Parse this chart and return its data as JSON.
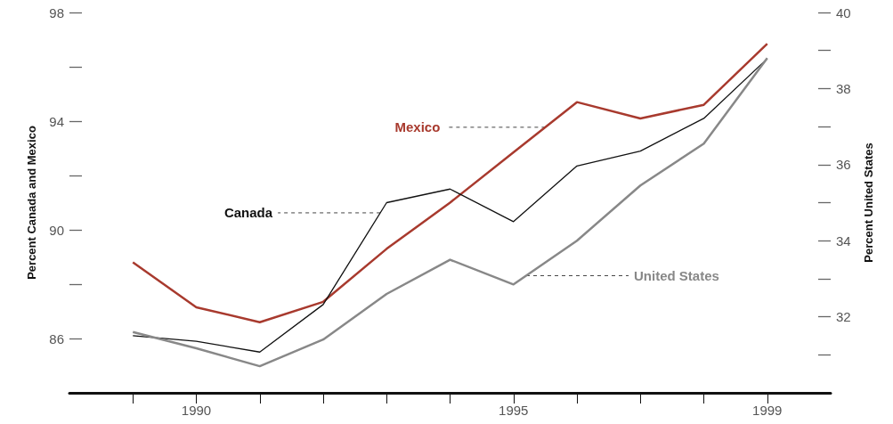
{
  "chart_data": {
    "type": "line",
    "ylabel": "Percent Canada and Mexico",
    "y2label": "Percent United States",
    "x": [
      1989,
      1990,
      1991,
      1992,
      1993,
      1994,
      1995,
      1996,
      1997,
      1998,
      1999
    ],
    "series": [
      {
        "name": "Mexico",
        "color": "#a83a2e",
        "values": [
          88.8,
          87.15,
          86.6,
          87.35,
          89.3,
          91.0,
          92.85,
          94.7,
          94.1,
          94.6,
          96.85
        ]
      },
      {
        "name": "Canada",
        "color": "#111111",
        "values": [
          86.1,
          85.9,
          85.5,
          87.25,
          91.0,
          91.5,
          90.3,
          92.35,
          92.9,
          94.1,
          96.3
        ]
      },
      {
        "name": "United States",
        "color": "#888888",
        "axis": "y2",
        "values": [
          31.6,
          31.17,
          30.7,
          31.4,
          32.6,
          33.5,
          32.85,
          34.0,
          35.45,
          36.55,
          38.8
        ]
      }
    ],
    "xlim": [
      1988,
      2000
    ],
    "xticks": [
      {
        "value": 1989,
        "label": null
      },
      1990,
      {
        "value": 1991,
        "label": null
      },
      {
        "value": 1992,
        "label": null
      },
      {
        "value": 1993,
        "label": null
      },
      {
        "value": 1994,
        "label": null
      },
      1995,
      {
        "value": 1996,
        "label": null
      },
      {
        "value": 1997,
        "label": null
      },
      {
        "value": 1998,
        "label": null
      },
      1999
    ],
    "ylim": [
      84,
      98
    ],
    "yticks": [
      86,
      {
        "value": 88,
        "label": null
      },
      90,
      {
        "value": 92,
        "label": null
      },
      94,
      {
        "value": 96,
        "label": null
      },
      98
    ],
    "y2lim": [
      30,
      40
    ],
    "y2ticks": [
      {
        "value": 31,
        "label": null
      },
      32,
      {
        "value": 33,
        "label": null
      },
      34,
      {
        "value": 35,
        "label": null
      },
      36,
      {
        "value": 37,
        "label": null
      },
      38,
      {
        "value": 39,
        "label": null
      },
      40
    ],
    "grid": false,
    "legend": false,
    "marker": "none",
    "line_style": "solid"
  }
}
